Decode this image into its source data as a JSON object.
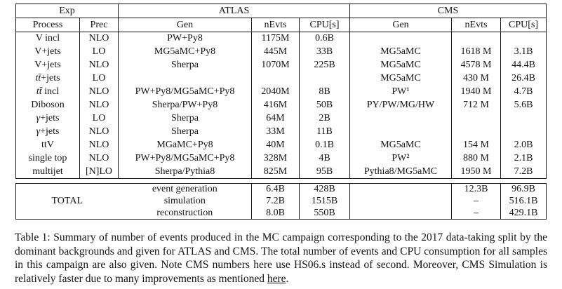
{
  "table": {
    "header": {
      "exp": "Exp",
      "atlas": "ATLAS",
      "cms": "CMS",
      "process": "Process",
      "prec": "Prec",
      "atlas_gen": "Gen",
      "atlas_nevts": "nEvts",
      "atlas_cpu": "CPU[s]",
      "cms_gen": "Gen",
      "cms_nevts": "nEvts",
      "cms_cpu": "CPU[s]"
    },
    "rows": [
      {
        "process_it": "",
        "process_ro": "V incl",
        "prec": "NLO",
        "atlas_gen": "PW+Py8",
        "atlas_nevts": "1175M",
        "atlas_cpu": "0.6B",
        "cms_gen": "",
        "cms_nevts": "",
        "cms_cpu": ""
      },
      {
        "process_it": "",
        "process_ro": "V+jets",
        "prec": "LO",
        "atlas_gen": "MG5aMC+Py8",
        "atlas_nevts": "445M",
        "atlas_cpu": "33B",
        "cms_gen": "MG5aMC",
        "cms_nevts": "1618 M",
        "cms_cpu": "3.1B"
      },
      {
        "process_it": "",
        "process_ro": "V+jets",
        "prec": "NLO",
        "atlas_gen": "Sherpa",
        "atlas_nevts": "1070M",
        "atlas_cpu": "225B",
        "cms_gen": "MG5aMC",
        "cms_nevts": "4578 M",
        "cms_cpu": "44.4B"
      },
      {
        "process_it": "tt̄",
        "process_ro": "+jets",
        "prec": "LO",
        "atlas_gen": "",
        "atlas_nevts": "",
        "atlas_cpu": "",
        "cms_gen": "MG5aMC",
        "cms_nevts": "430 M",
        "cms_cpu": "26.4B"
      },
      {
        "process_it": "tt̄",
        "process_ro": " incl",
        "prec": "NLO",
        "atlas_gen": "PW+Py8/MG5aMC+Py8",
        "atlas_nevts": "2040M",
        "atlas_cpu": "8B",
        "cms_gen": "PW¹",
        "cms_nevts": "1940 M",
        "cms_cpu": "4.7B"
      },
      {
        "process_it": "",
        "process_ro": "Diboson",
        "prec": "NLO",
        "atlas_gen": "Sherpa/PW+Py8",
        "atlas_nevts": "416M",
        "atlas_cpu": "50B",
        "cms_gen": "PY/PW/MG/HW",
        "cms_nevts": "712 M",
        "cms_cpu": "5.6B"
      },
      {
        "process_it": "γ",
        "process_ro": "+jets",
        "prec": "LO",
        "atlas_gen": "Sherpa",
        "atlas_nevts": "64M",
        "atlas_cpu": "2B",
        "cms_gen": "",
        "cms_nevts": "",
        "cms_cpu": ""
      },
      {
        "process_it": "γ",
        "process_ro": "+jets",
        "prec": "NLO",
        "atlas_gen": "Sherpa",
        "atlas_nevts": "33M",
        "atlas_cpu": "11B",
        "cms_gen": "",
        "cms_nevts": "",
        "cms_cpu": ""
      },
      {
        "process_it": "",
        "process_ro": "ttV",
        "prec": "NLO",
        "atlas_gen": "MGaMC+Py8",
        "atlas_nevts": "40M",
        "atlas_cpu": "0.1B",
        "cms_gen": "MG5aMC",
        "cms_nevts": "154 M",
        "cms_cpu": "2.0B"
      },
      {
        "process_it": "",
        "process_ro": "single top",
        "prec": "NLO",
        "atlas_gen": "PW+Py8/MG5aMC+Py8",
        "atlas_nevts": "328M",
        "atlas_cpu": "4B",
        "cms_gen": "PW²",
        "cms_nevts": "880 M",
        "cms_cpu": "2.1B"
      },
      {
        "process_it": "",
        "process_ro": "multijet",
        "prec": "[N]LO",
        "atlas_gen": "Sherpa/Pythia8",
        "atlas_nevts": "825M",
        "atlas_cpu": "95B",
        "cms_gen": "Pythia8/MG5aMC",
        "cms_nevts": "1950 M",
        "cms_cpu": "7.2B"
      }
    ],
    "total": {
      "label": "TOTAL",
      "rows": [
        {
          "stage": "event generation",
          "atlas_nevts": "6.4B",
          "atlas_cpu": "428B",
          "cms_gen": "",
          "cms_nevts": "12.3B",
          "cms_cpu": "96.9B"
        },
        {
          "stage": "simulation",
          "atlas_nevts": "7.2B",
          "atlas_cpu": "1515B",
          "cms_gen": "",
          "cms_nevts": "–",
          "cms_cpu": "516.1B"
        },
        {
          "stage": "reconstruction",
          "atlas_nevts": "8.0B",
          "atlas_cpu": "550B",
          "cms_gen": "",
          "cms_nevts": "–",
          "cms_cpu": "429.1B"
        }
      ]
    }
  },
  "caption": {
    "text_before_link": "Table 1: Summary of number of events produced in the MC campaign corresponding to the 2017 data-taking split by the dominant backgrounds and given for ATLAS and CMS. The total number of events and CPU consumption for all samples in this campaign are also given. Note CMS numbers here use HS06.s instead of second. Moreover, CMS Simulation is relatively faster due to many improvements as mentioned ",
    "link_text": "here",
    "text_after_link": "."
  }
}
